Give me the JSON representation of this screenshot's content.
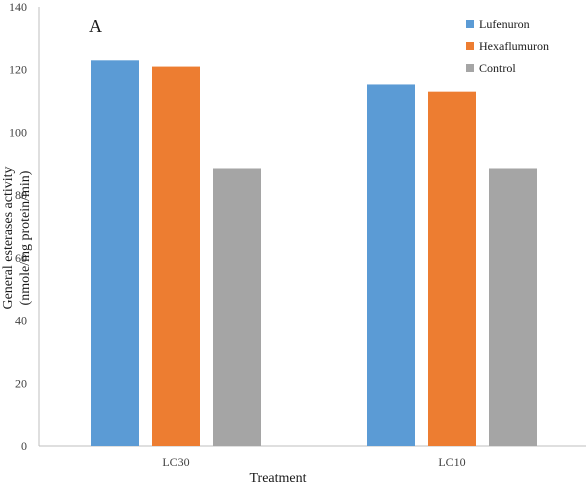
{
  "chart_data": {
    "type": "bar",
    "panel_label": "A",
    "categories": [
      "LC30",
      "LC10"
    ],
    "series": [
      {
        "name": "Lufenuron",
        "values": [
          123,
          115.3
        ],
        "color": "#5b9bd5"
      },
      {
        "name": "Hexaflumuron",
        "values": [
          121,
          113
        ],
        "color": "#ed7d31"
      },
      {
        "name": "Control",
        "values": [
          88.5,
          88.5
        ],
        "color": "#a5a5a5"
      }
    ],
    "xlabel": "Treatment",
    "ylabel_line1": "General esterases activity",
    "ylabel_line2": "(nmole/mg protein/min)",
    "ylim": [
      0,
      140
    ],
    "yticks": [
      0,
      20,
      40,
      60,
      80,
      100,
      120,
      140
    ],
    "legend_position": "top-right",
    "grid": false
  }
}
